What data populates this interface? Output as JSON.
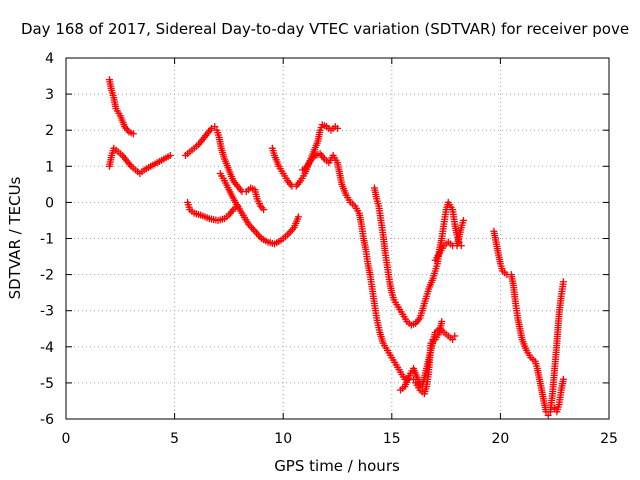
{
  "chart_data": {
    "type": "scatter",
    "title": "Day 168 of 2017, Sidereal Day-to-day VTEC variation (SDTVAR) for receiver pove",
    "xlabel": "GPS time / hours",
    "ylabel": "SDTVAR / TECUs",
    "xlim": [
      0,
      25
    ],
    "ylim": [
      -6,
      4
    ],
    "xticks": [
      0,
      5,
      10,
      15,
      20,
      25
    ],
    "yticks": [
      -6,
      -5,
      -4,
      -3,
      -2,
      -1,
      0,
      1,
      2,
      3,
      4
    ],
    "grid": true,
    "marker": "plus",
    "color": "#ff0000",
    "series": [
      {
        "points": [
          [
            2.0,
            3.4
          ],
          [
            2.1,
            3.1
          ],
          [
            2.2,
            2.9
          ],
          [
            2.3,
            2.6
          ],
          [
            2.5,
            2.4
          ],
          [
            2.7,
            2.1
          ],
          [
            2.9,
            1.95
          ],
          [
            3.1,
            1.9
          ]
        ]
      },
      {
        "points": [
          [
            2.0,
            1.0
          ],
          [
            2.1,
            1.3
          ],
          [
            2.2,
            1.5
          ],
          [
            2.4,
            1.4
          ],
          [
            2.6,
            1.3
          ],
          [
            2.8,
            1.15
          ],
          [
            3.0,
            1.0
          ],
          [
            3.2,
            0.9
          ],
          [
            3.4,
            0.8
          ],
          [
            3.6,
            0.9
          ],
          [
            3.9,
            1.0
          ],
          [
            4.2,
            1.1
          ],
          [
            4.5,
            1.2
          ],
          [
            4.8,
            1.3
          ]
        ]
      },
      {
        "points": [
          [
            5.5,
            1.3
          ],
          [
            5.7,
            1.4
          ],
          [
            5.9,
            1.5
          ],
          [
            6.1,
            1.6
          ],
          [
            6.3,
            1.75
          ],
          [
            6.5,
            1.9
          ],
          [
            6.7,
            2.05
          ],
          [
            6.85,
            2.1
          ],
          [
            6.95,
            2.0
          ],
          [
            7.05,
            1.8
          ],
          [
            7.15,
            1.5
          ],
          [
            7.3,
            1.2
          ],
          [
            7.5,
            0.9
          ],
          [
            7.7,
            0.6
          ],
          [
            7.9,
            0.45
          ],
          [
            8.1,
            0.3
          ],
          [
            8.3,
            0.3
          ],
          [
            8.5,
            0.4
          ],
          [
            8.7,
            0.35
          ],
          [
            8.8,
            0.1
          ],
          [
            8.95,
            -0.1
          ],
          [
            9.1,
            -0.2
          ]
        ]
      },
      {
        "points": [
          [
            5.6,
            0.0
          ],
          [
            5.7,
            -0.2
          ],
          [
            5.9,
            -0.3
          ],
          [
            6.2,
            -0.35
          ],
          [
            6.6,
            -0.45
          ],
          [
            7.0,
            -0.5
          ],
          [
            7.3,
            -0.45
          ],
          [
            7.5,
            -0.35
          ],
          [
            7.7,
            -0.2
          ],
          [
            7.9,
            -0.1
          ]
        ]
      },
      {
        "points": [
          [
            7.1,
            0.8
          ],
          [
            7.3,
            0.6
          ],
          [
            7.5,
            0.35
          ],
          [
            7.8,
            0.0
          ],
          [
            8.1,
            -0.3
          ],
          [
            8.4,
            -0.6
          ],
          [
            8.7,
            -0.8
          ],
          [
            9.0,
            -1.0
          ],
          [
            9.3,
            -1.1
          ],
          [
            9.6,
            -1.15
          ],
          [
            9.9,
            -1.05
          ],
          [
            10.2,
            -0.9
          ],
          [
            10.5,
            -0.7
          ],
          [
            10.7,
            -0.4
          ]
        ]
      },
      {
        "points": [
          [
            9.5,
            1.5
          ],
          [
            9.6,
            1.3
          ],
          [
            9.8,
            1.0
          ],
          [
            10.0,
            0.8
          ],
          [
            10.2,
            0.6
          ],
          [
            10.4,
            0.45
          ],
          [
            10.6,
            0.45
          ],
          [
            10.8,
            0.6
          ],
          [
            11.0,
            0.8
          ],
          [
            11.2,
            1.1
          ],
          [
            11.4,
            1.4
          ],
          [
            11.6,
            1.7
          ],
          [
            11.7,
            2.0
          ],
          [
            11.8,
            2.15
          ],
          [
            12.0,
            2.1
          ],
          [
            12.2,
            2.0
          ],
          [
            12.4,
            2.1
          ],
          [
            12.5,
            2.05
          ]
        ]
      },
      {
        "points": [
          [
            10.9,
            0.9
          ],
          [
            11.1,
            1.0
          ],
          [
            11.3,
            1.2
          ],
          [
            11.5,
            1.3
          ],
          [
            11.7,
            1.35
          ],
          [
            11.9,
            1.2
          ],
          [
            12.1,
            1.1
          ],
          [
            12.3,
            1.3
          ],
          [
            12.5,
            1.1
          ],
          [
            12.7,
            0.5
          ],
          [
            12.9,
            0.2
          ],
          [
            13.1,
            0.0
          ],
          [
            13.3,
            -0.1
          ],
          [
            13.5,
            -0.3
          ],
          [
            13.6,
            -0.6
          ],
          [
            13.7,
            -1.0
          ],
          [
            13.8,
            -1.3
          ],
          [
            13.9,
            -1.7
          ],
          [
            14.0,
            -2.0
          ],
          [
            14.1,
            -2.4
          ],
          [
            14.2,
            -2.8
          ],
          [
            14.3,
            -3.2
          ],
          [
            14.45,
            -3.6
          ],
          [
            14.6,
            -3.9
          ],
          [
            14.8,
            -4.1
          ],
          [
            15.0,
            -4.3
          ],
          [
            15.2,
            -4.5
          ],
          [
            15.4,
            -4.7
          ],
          [
            15.6,
            -4.9
          ],
          [
            15.8,
            -4.9
          ],
          [
            16.0,
            -4.9
          ],
          [
            16.1,
            -5.0
          ],
          [
            16.3,
            -5.2
          ],
          [
            16.5,
            -5.3
          ],
          [
            16.6,
            -5.1
          ],
          [
            16.7,
            -4.7
          ],
          [
            16.75,
            -4.3
          ],
          [
            16.8,
            -3.9
          ],
          [
            16.9,
            -3.8
          ],
          [
            17.0,
            -3.8
          ],
          [
            17.2,
            -3.6
          ],
          [
            17.3,
            -3.3
          ]
        ]
      },
      {
        "points": [
          [
            14.2,
            0.4
          ],
          [
            14.3,
            0.1
          ],
          [
            14.4,
            -0.1
          ],
          [
            14.5,
            -0.5
          ],
          [
            14.6,
            -0.9
          ],
          [
            14.7,
            -1.4
          ],
          [
            14.8,
            -1.8
          ],
          [
            14.9,
            -2.2
          ],
          [
            15.0,
            -2.5
          ],
          [
            15.1,
            -2.7
          ],
          [
            15.3,
            -2.9
          ],
          [
            15.5,
            -3.1
          ],
          [
            15.7,
            -3.3
          ],
          [
            15.9,
            -3.4
          ],
          [
            16.1,
            -3.35
          ],
          [
            16.3,
            -3.2
          ],
          [
            16.5,
            -2.8
          ],
          [
            16.7,
            -2.4
          ],
          [
            16.9,
            -2.1
          ],
          [
            17.1,
            -1.7
          ],
          [
            17.2,
            -1.3
          ],
          [
            17.3,
            -1.0
          ],
          [
            17.4,
            -0.6
          ],
          [
            17.5,
            -0.2
          ],
          [
            17.6,
            0.0
          ],
          [
            17.8,
            -0.2
          ],
          [
            17.9,
            -0.6
          ],
          [
            18.0,
            -0.9
          ],
          [
            18.1,
            -1.1
          ],
          [
            18.2,
            -1.2
          ]
        ]
      },
      {
        "points": [
          [
            15.4,
            -5.2
          ],
          [
            15.6,
            -5.1
          ],
          [
            15.8,
            -4.8
          ],
          [
            16.0,
            -4.6
          ],
          [
            16.2,
            -4.9
          ],
          [
            16.4,
            -5.1
          ],
          [
            16.6,
            -4.6
          ],
          [
            16.8,
            -4.1
          ],
          [
            17.0,
            -3.6
          ],
          [
            17.2,
            -3.5
          ],
          [
            17.4,
            -3.6
          ],
          [
            17.6,
            -3.7
          ],
          [
            17.8,
            -3.8
          ],
          [
            17.9,
            -3.7
          ]
        ]
      },
      {
        "points": [
          [
            17.0,
            -1.6
          ],
          [
            17.2,
            -1.4
          ],
          [
            17.4,
            -1.2
          ],
          [
            17.6,
            -1.1
          ],
          [
            17.8,
            -1.2
          ],
          [
            18.0,
            -1.2
          ],
          [
            18.2,
            -0.7
          ],
          [
            18.3,
            -0.5
          ]
        ]
      },
      {
        "points": [
          [
            19.7,
            -0.8
          ],
          [
            19.8,
            -1.1
          ],
          [
            19.9,
            -1.4
          ],
          [
            20.0,
            -1.7
          ],
          [
            20.1,
            -1.9
          ],
          [
            20.3,
            -2.0
          ],
          [
            20.5,
            -2.0
          ],
          [
            20.6,
            -2.3
          ],
          [
            20.7,
            -2.8
          ],
          [
            20.8,
            -3.2
          ],
          [
            20.9,
            -3.5
          ],
          [
            21.0,
            -3.8
          ],
          [
            21.2,
            -4.1
          ],
          [
            21.4,
            -4.3
          ],
          [
            21.6,
            -4.4
          ],
          [
            21.7,
            -4.6
          ],
          [
            21.8,
            -4.9
          ],
          [
            21.9,
            -5.2
          ],
          [
            22.0,
            -5.5
          ],
          [
            22.1,
            -5.8
          ],
          [
            22.2,
            -5.9
          ],
          [
            22.3,
            -5.8
          ],
          [
            22.4,
            -5.3
          ],
          [
            22.5,
            -4.6
          ],
          [
            22.6,
            -3.9
          ],
          [
            22.7,
            -3.1
          ],
          [
            22.8,
            -2.6
          ],
          [
            22.9,
            -2.2
          ]
        ]
      },
      {
        "points": [
          [
            22.5,
            -5.7
          ],
          [
            22.6,
            -5.8
          ],
          [
            22.7,
            -5.6
          ],
          [
            22.8,
            -5.2
          ],
          [
            22.9,
            -4.9
          ]
        ]
      }
    ]
  }
}
